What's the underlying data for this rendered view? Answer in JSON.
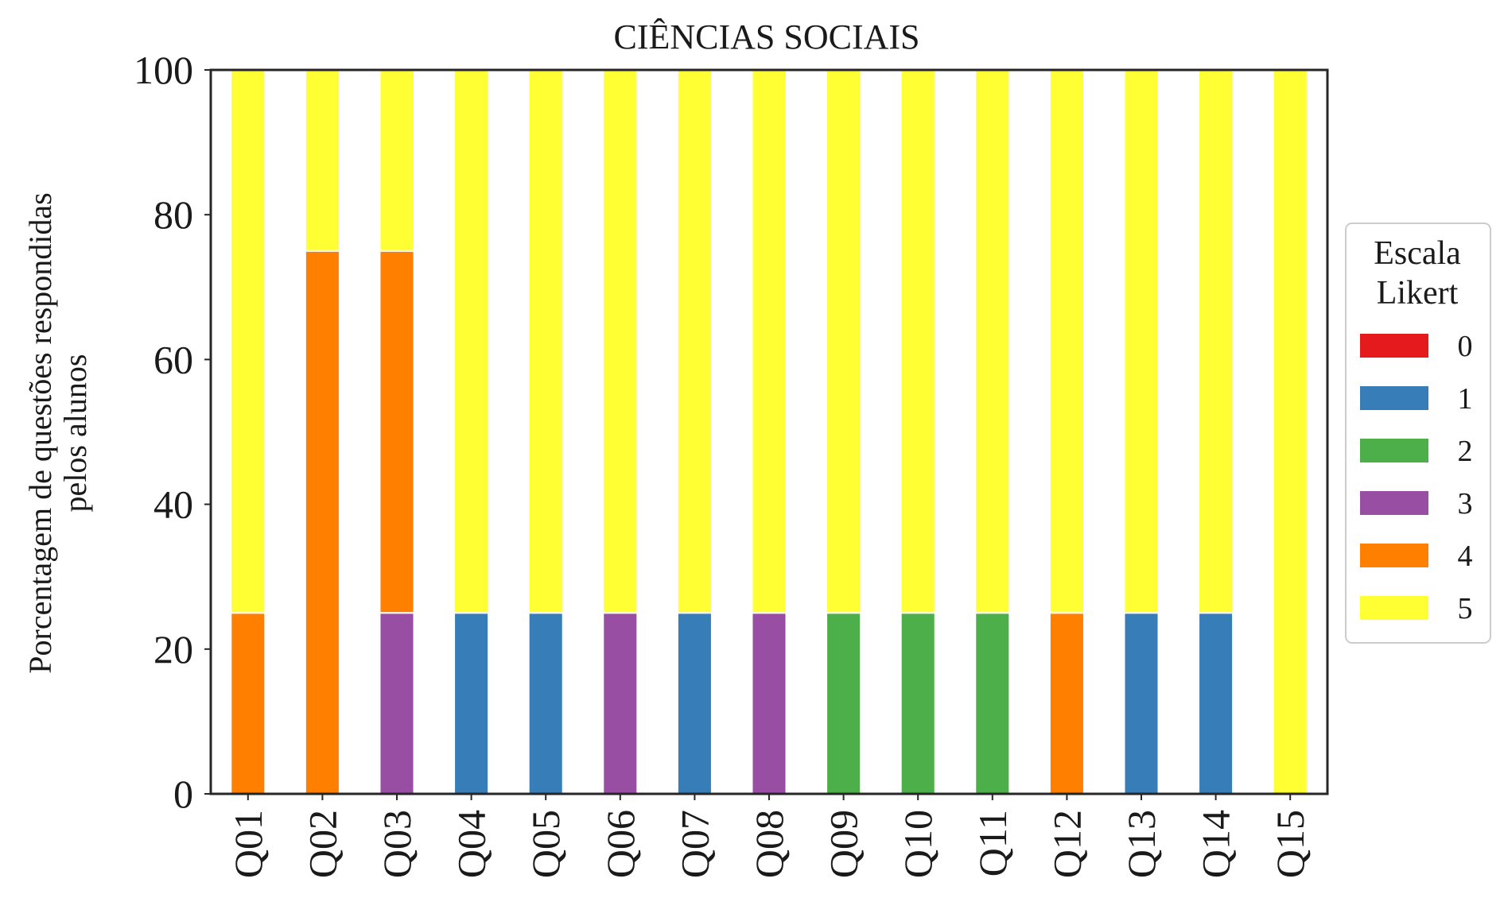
{
  "chart_data": {
    "type": "bar",
    "stacked": true,
    "title": "CIÊNCIAS SOCIAIS",
    "xlabel": "",
    "ylabel": [
      "Porcentagem de questões respondidas",
      "pelos alunos"
    ],
    "ylim": [
      0,
      100
    ],
    "yticks": [
      "0",
      "20",
      "40",
      "60",
      "80",
      "100"
    ],
    "grid": false,
    "legend_placement": "right",
    "categories": [
      "Q01",
      "Q02",
      "Q03",
      "Q04",
      "Q05",
      "Q06",
      "Q07",
      "Q08",
      "Q09",
      "Q10",
      "Q11",
      "Q12",
      "Q13",
      "Q14",
      "Q15"
    ],
    "legend": {
      "title": [
        "Escala",
        "Likert"
      ],
      "entries": [
        "0",
        "1",
        "2",
        "3",
        "4",
        "5"
      ]
    },
    "series": [
      {
        "name": "0",
        "color": "#e41a1c",
        "values": [
          0,
          0,
          0,
          0,
          0,
          0,
          0,
          0,
          0,
          0,
          0,
          0,
          0,
          0,
          0
        ]
      },
      {
        "name": "1",
        "color": "#377eb8",
        "values": [
          0,
          0,
          0,
          25,
          25,
          0,
          25,
          0,
          0,
          0,
          0,
          0,
          25,
          25,
          0
        ]
      },
      {
        "name": "2",
        "color": "#4daf4a",
        "values": [
          0,
          0,
          0,
          0,
          0,
          0,
          0,
          0,
          25,
          25,
          25,
          0,
          0,
          0,
          0
        ]
      },
      {
        "name": "3",
        "color": "#984ea3",
        "values": [
          0,
          0,
          25,
          0,
          0,
          25,
          0,
          25,
          0,
          0,
          0,
          0,
          0,
          0,
          0
        ]
      },
      {
        "name": "4",
        "color": "#ff7f00",
        "values": [
          25,
          75,
          50,
          0,
          0,
          0,
          0,
          0,
          0,
          0,
          0,
          25,
          0,
          0,
          0
        ]
      },
      {
        "name": "5",
        "color": "#ffff33",
        "values": [
          75,
          25,
          25,
          75,
          75,
          75,
          75,
          75,
          75,
          75,
          75,
          75,
          75,
          75,
          100
        ]
      }
    ]
  }
}
